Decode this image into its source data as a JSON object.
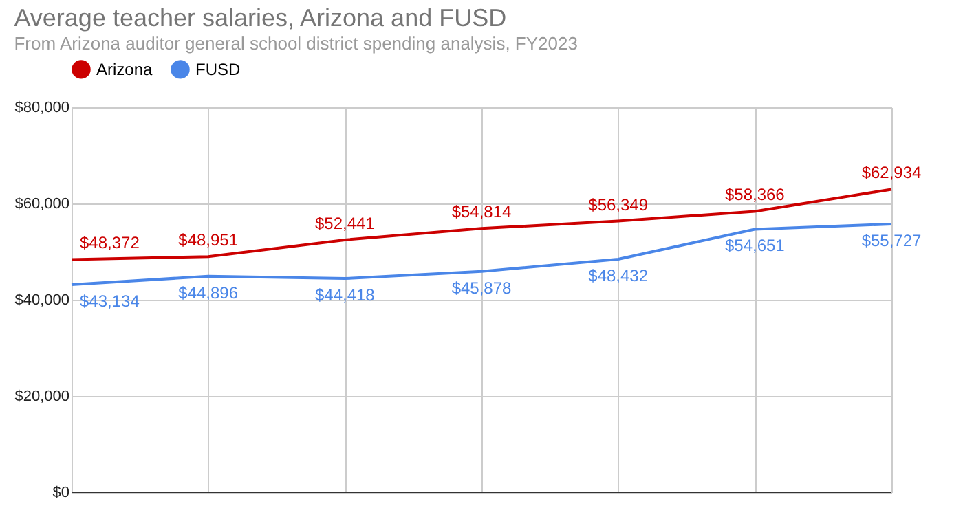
{
  "chart_data": {
    "type": "line",
    "title": "Average teacher salaries, Arizona and FUSD",
    "subtitle": "From Arizona auditor general school district spending analysis, FY2023",
    "categories": [
      null,
      null,
      null,
      null,
      null,
      null,
      null
    ],
    "series": [
      {
        "name": "Arizona",
        "color": "#cc0000",
        "values": [
          48372,
          48951,
          52441,
          54814,
          56349,
          58366,
          62934
        ],
        "value_labels": [
          "$48,372",
          "$48,951",
          "$52,441",
          "$54,814",
          "$56,349",
          "$58,366",
          "$62,934"
        ]
      },
      {
        "name": "FUSD",
        "color": "#4a86e8",
        "values": [
          43134,
          44896,
          44418,
          45878,
          48432,
          54651,
          55727
        ],
        "value_labels": [
          "$43,134",
          "$44,896",
          "$44,418",
          "$45,878",
          "$48,432",
          "$54,651",
          "$55,727"
        ]
      }
    ],
    "ylim": [
      0,
      80000
    ],
    "yticks": [
      {
        "value": 0,
        "label": "$0"
      },
      {
        "value": 20000,
        "label": "$20,000"
      },
      {
        "value": 40000,
        "label": "$40,000"
      },
      {
        "value": 60000,
        "label": "$60,000"
      },
      {
        "value": 80000,
        "label": "$80,000"
      }
    ],
    "grid": true,
    "legend": "top",
    "tick_labels": "y",
    "marker": "none"
  }
}
